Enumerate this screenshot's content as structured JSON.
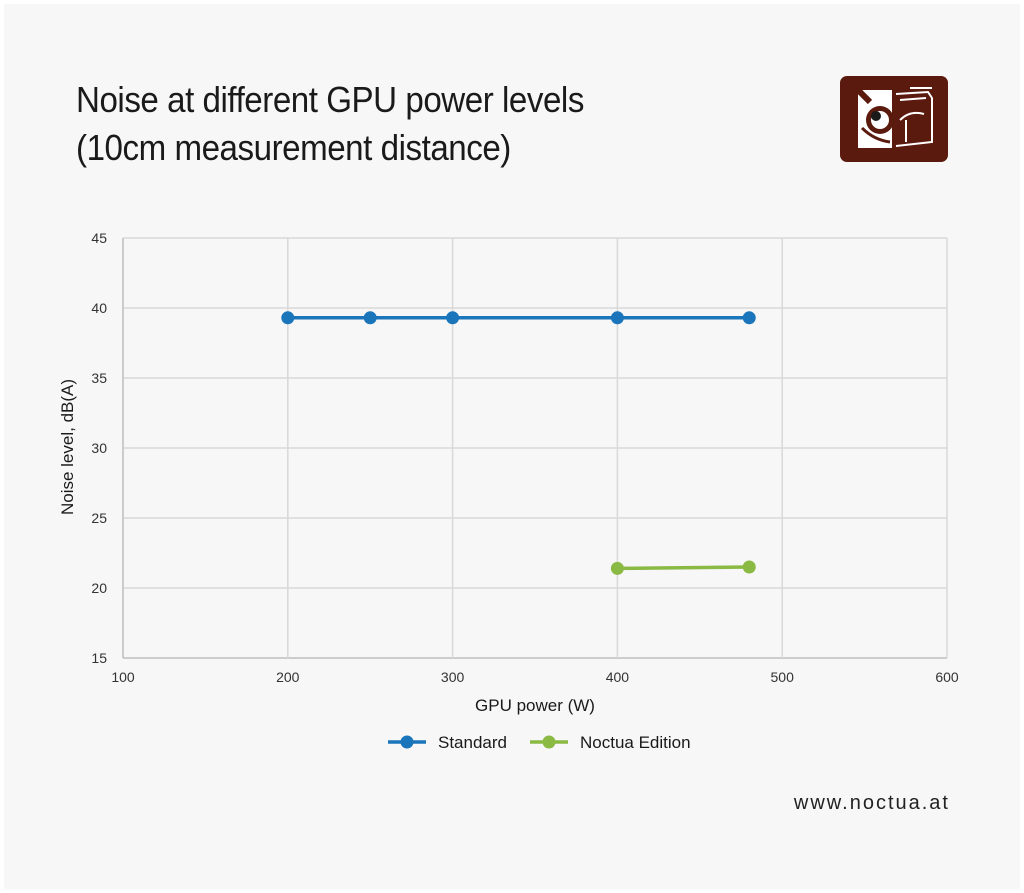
{
  "header": {
    "title_line1": "Noise at different GPU power levels",
    "title_line2": "(10cm measurement distance)"
  },
  "footer": {
    "url": "www.noctua.at"
  },
  "logo": {
    "icon": "noctua-owl-logo-icon",
    "color": "#5a1a0e"
  },
  "chart_data": {
    "type": "line",
    "title": "Noise at different GPU power levels (10cm measurement distance)",
    "xlabel": "GPU power (W)",
    "ylabel": "Noise level, dB(A)",
    "xlim": [
      100,
      600
    ],
    "ylim": [
      15,
      45
    ],
    "xticks": [
      100,
      200,
      300,
      400,
      500,
      600
    ],
    "yticks": [
      15,
      20,
      25,
      30,
      35,
      40,
      45
    ],
    "grid": true,
    "legend": "bottom",
    "series": [
      {
        "name": "Standard",
        "color": "#1a75bb",
        "x": [
          200,
          250,
          300,
          400,
          480
        ],
        "y": [
          39.3,
          39.3,
          39.3,
          39.3,
          39.3
        ]
      },
      {
        "name": "Noctua Edition",
        "color": "#8ab944",
        "x": [
          400,
          480
        ],
        "y": [
          21.4,
          21.5
        ]
      }
    ]
  }
}
